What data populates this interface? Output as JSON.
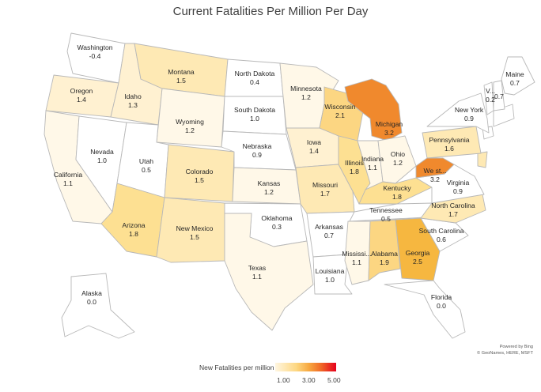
{
  "title": "Current Fatalities Per Million Per Day",
  "credit": {
    "line1": "Powered by Bing",
    "line2": "© GeoNames, HERE, MSFT"
  },
  "legend": {
    "title": "New Fatalities per million",
    "ticks": [
      "1.00",
      "3.00",
      "5.00"
    ],
    "colors": [
      "#fff6e0",
      "#fdd781",
      "#f7a941",
      "#f06a27",
      "#e5001d"
    ]
  },
  "states": [
    {
      "key": "WA",
      "name": "Washington",
      "value": "-0.4"
    },
    {
      "key": "OR",
      "name": "Oregon",
      "value": "1.4"
    },
    {
      "key": "CA",
      "name": "California",
      "value": "1.1"
    },
    {
      "key": "NV",
      "name": "Nevada",
      "value": "1.0"
    },
    {
      "key": "ID",
      "name": "Idaho",
      "value": "1.3"
    },
    {
      "key": "MT",
      "name": "Montana",
      "value": "1.5"
    },
    {
      "key": "WY",
      "name": "Wyoming",
      "value": "1.2"
    },
    {
      "key": "UT",
      "name": "Utah",
      "value": "0.5"
    },
    {
      "key": "AZ",
      "name": "Arizona",
      "value": "1.8"
    },
    {
      "key": "CO",
      "name": "Colorado",
      "value": "1.5"
    },
    {
      "key": "NM",
      "name": "New Mexico",
      "value": "1.5"
    },
    {
      "key": "ND",
      "name": "North Dakota",
      "value": "0.4"
    },
    {
      "key": "SD",
      "name": "South Dakota",
      "value": "1.0"
    },
    {
      "key": "NE",
      "name": "Nebraska",
      "value": "0.9"
    },
    {
      "key": "KS",
      "name": "Kansas",
      "value": "1.2"
    },
    {
      "key": "OK",
      "name": "Oklahoma",
      "value": "0.3"
    },
    {
      "key": "TX",
      "name": "Texas",
      "value": "1.1"
    },
    {
      "key": "MN",
      "name": "Minnesota",
      "value": "1.2"
    },
    {
      "key": "IA",
      "name": "Iowa",
      "value": "1.4"
    },
    {
      "key": "MO",
      "name": "Missouri",
      "value": "1.7"
    },
    {
      "key": "AR",
      "name": "Arkansas",
      "value": "0.7"
    },
    {
      "key": "LA",
      "name": "Louisiana",
      "value": "1.0"
    },
    {
      "key": "WI",
      "name": "Wisconsin",
      "value": "2.1"
    },
    {
      "key": "IL",
      "name": "Illinois",
      "value": "1.8"
    },
    {
      "key": "MI",
      "name": "Michigan",
      "value": "3.2"
    },
    {
      "key": "IN",
      "name": "Indiana",
      "value": "1.1"
    },
    {
      "key": "OH",
      "name": "Ohio",
      "value": "1.2"
    },
    {
      "key": "KY",
      "name": "Kentucky",
      "value": "1.8"
    },
    {
      "key": "TN",
      "name": "Tennessee",
      "value": "0.5"
    },
    {
      "key": "MS",
      "name": "Mississi...",
      "value": "1.1"
    },
    {
      "key": "AL",
      "name": "Alabama",
      "value": "1.9"
    },
    {
      "key": "GA",
      "name": "Georgia",
      "value": "2.5"
    },
    {
      "key": "FL",
      "name": "Florida",
      "value": "0.0"
    },
    {
      "key": "SC",
      "name": "South Carolina",
      "value": "0.6"
    },
    {
      "key": "NC",
      "name": "North Carolina",
      "value": "1.7"
    },
    {
      "key": "VA",
      "name": "Virginia",
      "value": "0.9"
    },
    {
      "key": "WV",
      "name": "We st...",
      "value": "3.2"
    },
    {
      "key": "PA",
      "name": "Pennsylvania",
      "value": "1.6"
    },
    {
      "key": "NY",
      "name": "New York",
      "value": "0.9"
    },
    {
      "key": "VT",
      "name": "V...",
      "value": "0.2"
    },
    {
      "key": "NH",
      "name": "",
      "value": "0.7"
    },
    {
      "key": "ME",
      "name": "Maine",
      "value": "0.7"
    },
    {
      "key": "AK",
      "name": "Alaska",
      "value": "0.0"
    }
  ]
}
